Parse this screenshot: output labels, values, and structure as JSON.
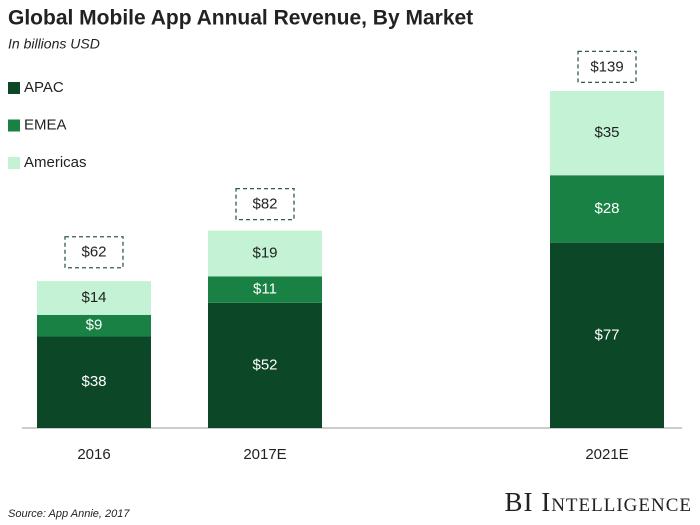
{
  "chart_data": {
    "type": "stacked_bar",
    "title": "Global Mobile App Annual Revenue, By Market",
    "subtitle": "In billions USD",
    "categories": [
      "2016",
      "2017E",
      "2021E"
    ],
    "series": [
      {
        "name": "APAC",
        "color": "#0c4728",
        "values": [
          38,
          52,
          77
        ],
        "value_labels": [
          "$38",
          "$52",
          "$77"
        ]
      },
      {
        "name": "EMEA",
        "color": "#1a8145",
        "values": [
          9,
          11,
          28
        ],
        "value_labels": [
          "$9",
          "$11",
          "$28"
        ]
      },
      {
        "name": "Americas",
        "color": "#c3f2d5",
        "values": [
          14,
          19,
          35
        ],
        "value_labels": [
          "$14",
          "$19",
          "$35"
        ]
      }
    ],
    "totals": [
      62,
      82,
      139
    ],
    "total_labels": [
      "$62",
      "$82",
      "$139"
    ],
    "legend": "top-left",
    "source": "Source: App Annie, 2017",
    "brand": "BI Intelligence"
  }
}
